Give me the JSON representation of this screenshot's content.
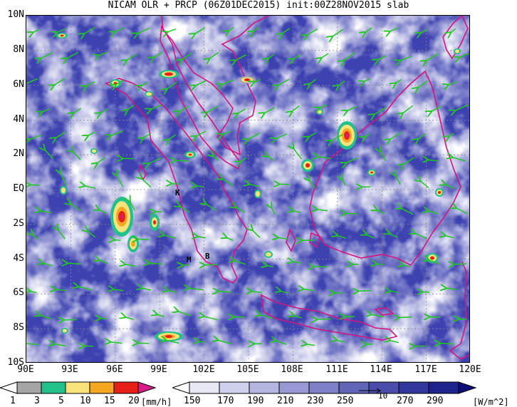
{
  "title": "NICAM OLR + PRCP (06Z01DEC2015) init:00Z28NOV2015 slab",
  "y_axis": [
    "10N",
    "8N",
    "6N",
    "4N",
    "2N",
    "EQ",
    "2S",
    "4S",
    "6S",
    "8S",
    "10S"
  ],
  "x_axis": [
    "90E",
    "93E",
    "96E",
    "99E",
    "102E",
    "105E",
    "108E",
    "111E",
    "114E",
    "117E",
    "120E"
  ],
  "place_labels": [
    "K",
    "M",
    "B"
  ],
  "precip_colorbar": {
    "ticks": [
      "1",
      "3",
      "5",
      "10",
      "15",
      "20"
    ],
    "unit": "[mm/h]",
    "colors": [
      "#ffffff",
      "#a6a6a6",
      "#22c08a",
      "#f7e37a",
      "#f5a623",
      "#e62018",
      "#d81b8a"
    ]
  },
  "olr_colorbar": {
    "ticks": [
      "150",
      "170",
      "190",
      "210",
      "230",
      "250",
      "270",
      "290"
    ],
    "unit": "[W/m^2]",
    "colors": [
      "#ffffff",
      "#e8e8f5",
      "#cfd0ec",
      "#b4b6e0",
      "#989bd3",
      "#7c80c6",
      "#6065b8",
      "#4a4eaa",
      "#32369c",
      "#1e228c",
      "#0c0f7a"
    ],
    "overlay_label": "10"
  },
  "colors": {
    "coast": "#d4157f",
    "wind": "#1fc81f"
  }
}
